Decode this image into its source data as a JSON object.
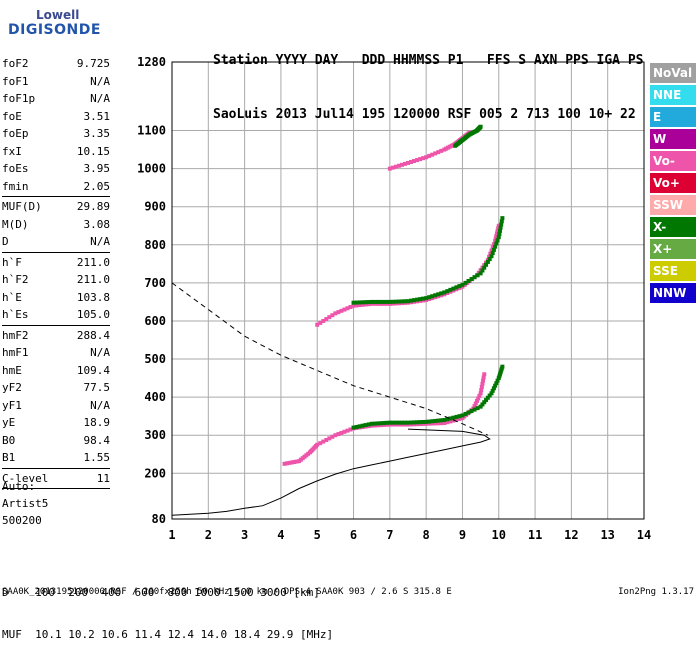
{
  "logo": {
    "brand": "Lowell",
    "name": "DIGISONDE"
  },
  "header": {
    "line1": "Station YYYY DAY   DDD HHMMSS P1   FFS S AXN PPS IGA PS",
    "line2": "SaoLuis 2013 Jul14 195 120000 RSF 005 2 713 100 10+ 22"
  },
  "params": [
    {
      "k": "foF2",
      "v": "9.725"
    },
    {
      "k": "foF1",
      "v": "N/A"
    },
    {
      "k": "foF1p",
      "v": "N/A"
    },
    {
      "k": "foE",
      "v": "3.51"
    },
    {
      "k": "foEp",
      "v": "3.35"
    },
    {
      "k": "fxI",
      "v": "10.15"
    },
    {
      "k": "foEs",
      "v": "3.95"
    },
    {
      "k": "fmin",
      "v": "2.05"
    },
    {
      "sep": true
    },
    {
      "k": "MUF(D)",
      "v": "29.89"
    },
    {
      "k": "M(D)",
      "v": "3.08"
    },
    {
      "k": "D",
      "v": "N/A"
    },
    {
      "sep": true
    },
    {
      "k": "h`F",
      "v": "211.0"
    },
    {
      "k": "h`F2",
      "v": "211.0"
    },
    {
      "k": "h`E",
      "v": "103.8"
    },
    {
      "k": "h`Es",
      "v": "105.0"
    },
    {
      "sep": true
    },
    {
      "k": "hmF2",
      "v": "288.4"
    },
    {
      "k": "hmF1",
      "v": "N/A"
    },
    {
      "k": "hmE",
      "v": "109.4"
    },
    {
      "k": "yF2",
      "v": "77.5"
    },
    {
      "k": "yF1",
      "v": "N/A"
    },
    {
      "k": "yE",
      "v": "18.9"
    },
    {
      "k": "B0",
      "v": "98.4"
    },
    {
      "k": "B1",
      "v": "1.55"
    },
    {
      "sep": true
    },
    {
      "k": "C-level",
      "v": "11"
    },
    {
      "sep": true
    }
  ],
  "auto": {
    "line1": "Auto:",
    "line2": "Artist5",
    "line3": "500200"
  },
  "legend": [
    {
      "label": "NoVal",
      "color": "#a0a0a0"
    },
    {
      "label": "NNE",
      "color": "#33ddee"
    },
    {
      "label": "E",
      "color": "#22aadd"
    },
    {
      "label": "W",
      "color": "#aa0099"
    },
    {
      "label": "Vo-",
      "color": "#ee55aa"
    },
    {
      "label": "Vo+",
      "color": "#dd0033"
    },
    {
      "label": "SSW",
      "color": "#ffaaaa"
    },
    {
      "label": "X-",
      "color": "#007700"
    },
    {
      "label": "X+",
      "color": "#66aa44"
    },
    {
      "label": "SSE",
      "color": "#cccc00"
    },
    {
      "label": "NNW",
      "color": "#1100cc"
    }
  ],
  "muf": {
    "line1": "D    100  200  400  600  800 1000 1500 3000 [km]",
    "line2": "MUF  10.1 10.2 10.6 11.4 12.4 14.0 18.4 29.9 [MHz]"
  },
  "footer": "SAA0K_2013195120000.RSF / 260fx256h 50 kHz 5.0 km / DPS-4 SAA0K 903 / 2.6 S 315.8 E",
  "version": "Ion2Png 1.3.17",
  "chart_data": {
    "type": "scatter",
    "title": "",
    "xlabel": "",
    "ylabel": "",
    "xlim": [
      1,
      14
    ],
    "ylim": [
      80,
      1280
    ],
    "x_ticks": [
      1,
      2,
      3,
      4,
      5,
      6,
      7,
      8,
      9,
      10,
      11,
      12,
      13,
      14
    ],
    "y_ticks": [
      80,
      200,
      300,
      400,
      500,
      600,
      700,
      800,
      900,
      1000,
      1100,
      1280
    ],
    "grid": true,
    "series": [
      {
        "name": "Vo-",
        "color": "#ee55aa",
        "values": [
          [
            4.1,
            225
          ],
          [
            4.5,
            232
          ],
          [
            4.8,
            255
          ],
          [
            5.0,
            275
          ],
          [
            5.5,
            300
          ],
          [
            6.0,
            318
          ],
          [
            6.5,
            325
          ],
          [
            7.0,
            328
          ],
          [
            7.5,
            328
          ],
          [
            8.0,
            330
          ],
          [
            8.5,
            332
          ],
          [
            9.0,
            345
          ],
          [
            9.3,
            370
          ],
          [
            9.5,
            410
          ],
          [
            9.6,
            460
          ]
        ]
      },
      {
        "name": "X-",
        "color": "#007700",
        "values": [
          [
            6.0,
            320
          ],
          [
            6.5,
            330
          ],
          [
            7.0,
            333
          ],
          [
            7.5,
            333
          ],
          [
            8.0,
            335
          ],
          [
            8.5,
            340
          ],
          [
            9.0,
            352
          ],
          [
            9.5,
            375
          ],
          [
            9.8,
            410
          ],
          [
            10.0,
            450
          ],
          [
            10.1,
            480
          ]
        ]
      },
      {
        "name": "Vo-",
        "color": "#ee55aa",
        "values": [
          [
            5.0,
            590
          ],
          [
            5.5,
            620
          ],
          [
            6.0,
            640
          ],
          [
            6.5,
            645
          ],
          [
            7.0,
            645
          ],
          [
            7.5,
            648
          ],
          [
            8.0,
            655
          ],
          [
            8.5,
            670
          ],
          [
            9.0,
            690
          ],
          [
            9.4,
            720
          ],
          [
            9.7,
            760
          ],
          [
            9.9,
            810
          ],
          [
            10.0,
            850
          ]
        ]
      },
      {
        "name": "X-",
        "color": "#007700",
        "values": [
          [
            6.0,
            648
          ],
          [
            6.5,
            650
          ],
          [
            7.0,
            650
          ],
          [
            7.5,
            652
          ],
          [
            8.0,
            660
          ],
          [
            8.5,
            675
          ],
          [
            9.0,
            695
          ],
          [
            9.5,
            725
          ],
          [
            9.8,
            770
          ],
          [
            10.0,
            820
          ],
          [
            10.1,
            870
          ]
        ]
      },
      {
        "name": "Vo-",
        "color": "#ee55aa",
        "values": [
          [
            7.0,
            1000
          ],
          [
            7.5,
            1015
          ],
          [
            8.0,
            1030
          ],
          [
            8.5,
            1050
          ],
          [
            8.8,
            1065
          ],
          [
            9.0,
            1080
          ],
          [
            9.2,
            1095
          ]
        ]
      },
      {
        "name": "X-",
        "color": "#007700",
        "values": [
          [
            8.8,
            1060
          ],
          [
            9.0,
            1075
          ],
          [
            9.2,
            1090
          ],
          [
            9.4,
            1100
          ],
          [
            9.5,
            1110
          ]
        ]
      }
    ],
    "profile": [
      [
        1.0,
        90
      ],
      [
        2.0,
        95
      ],
      [
        2.5,
        100
      ],
      [
        3.0,
        108
      ],
      [
        3.5,
        115
      ],
      [
        4.0,
        135
      ],
      [
        4.5,
        160
      ],
      [
        5.0,
        180
      ],
      [
        5.5,
        198
      ],
      [
        6.0,
        212
      ],
      [
        6.5,
        222
      ],
      [
        7.0,
        232
      ],
      [
        7.5,
        242
      ],
      [
        8.0,
        252
      ],
      [
        8.5,
        262
      ],
      [
        9.0,
        272
      ],
      [
        9.5,
        282
      ],
      [
        9.75,
        290
      ],
      [
        9.6,
        300
      ],
      [
        9.0,
        310
      ],
      [
        8.0,
        314
      ],
      [
        7.5,
        316
      ]
    ],
    "dashed_profile": [
      [
        1.0,
        700
      ],
      [
        2.0,
        630
      ],
      [
        3.0,
        560
      ],
      [
        4.0,
        510
      ],
      [
        5.0,
        470
      ],
      [
        6.0,
        430
      ],
      [
        7.0,
        400
      ],
      [
        8.0,
        370
      ],
      [
        9.0,
        330
      ],
      [
        9.7,
        300
      ]
    ]
  }
}
